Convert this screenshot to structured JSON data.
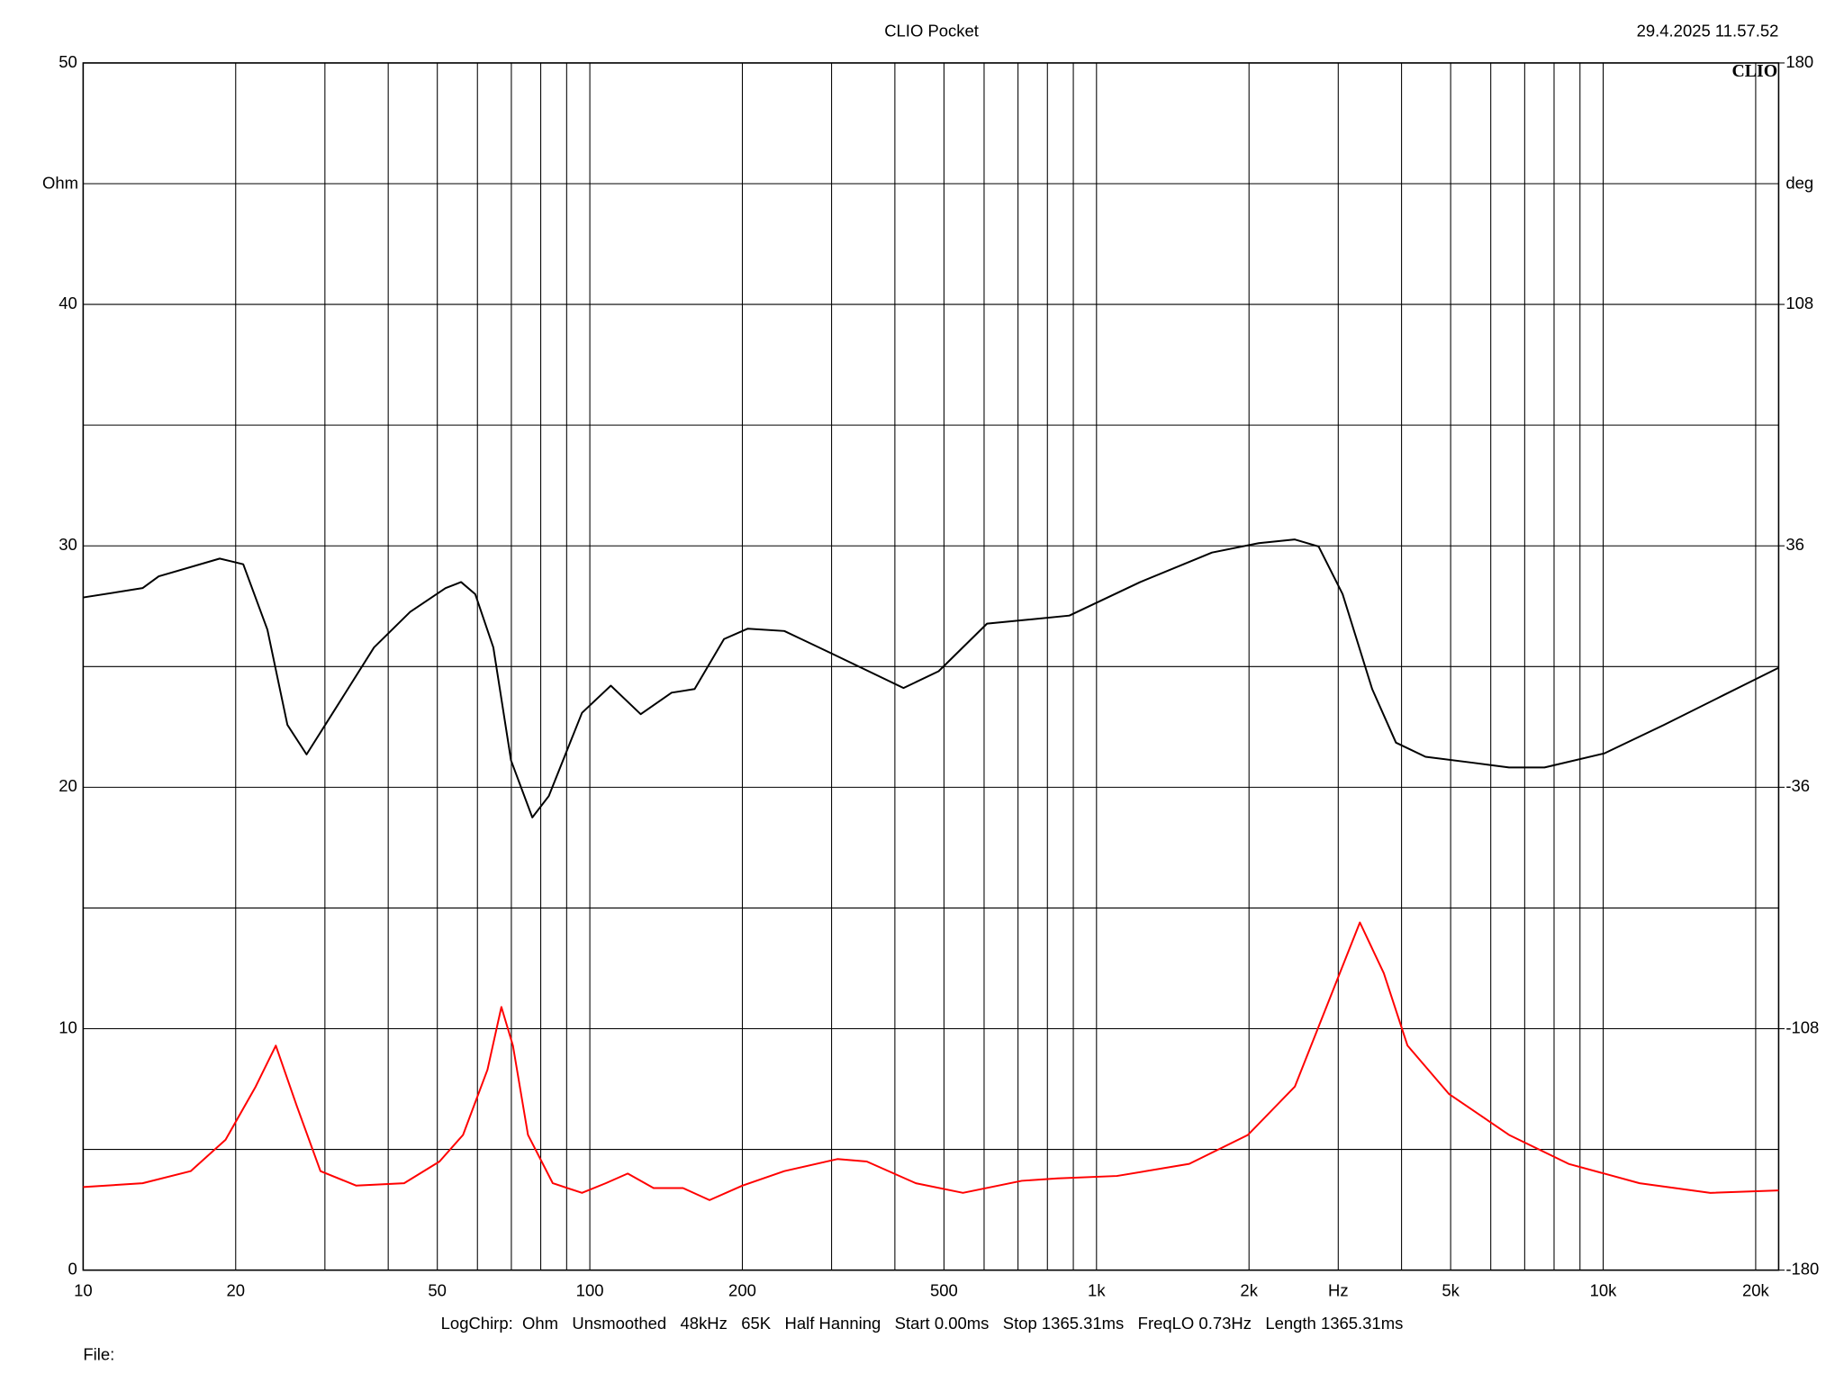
{
  "chart_data": {
    "type": "line",
    "title": "CLIO Pocket",
    "timestamp": "29.4.2025 11.57.52",
    "logo": "CLIO",
    "ylabel": "Ohm",
    "y2label": "deg",
    "xlabel": "Hz",
    "footer": "LogChirp:  Ohm   Unsmoothed   48kHz   65K   Half Hanning   Start 0.00ms   Stop 1365.31ms   FreqLO 0.73Hz   Length 1365.31ms",
    "file_label": "File:",
    "xscale": "log",
    "xlim": [
      10,
      22200
    ],
    "xticks": [
      10,
      20,
      50,
      100,
      200,
      500,
      {
        "value": 1000,
        "label": "1k"
      },
      {
        "value": 2000,
        "label": "2k"
      },
      {
        "value": 5000,
        "label": "5k"
      },
      {
        "value": 10000,
        "label": "10k"
      },
      {
        "value": 20000,
        "label": "20k"
      }
    ],
    "xminor": [
      30,
      40,
      60,
      70,
      80,
      90,
      300,
      400,
      600,
      700,
      800,
      900,
      3000,
      4000,
      6000,
      7000,
      8000,
      9000
    ],
    "xlabel_at": 3000,
    "ylim": [
      0,
      50
    ],
    "yticks": [
      0,
      10,
      20,
      30,
      40,
      50
    ],
    "yminor": [
      5,
      15,
      25,
      35,
      45
    ],
    "y2lim": [
      -180,
      180
    ],
    "y2ticks": [
      -180,
      -108,
      -36,
      36,
      108,
      180
    ],
    "grid": true,
    "series": [
      {
        "color": "#ff0000",
        "axis": "y",
        "x": [
          10,
          13.1,
          16.3,
          19.1,
          21.9,
          24,
          26.4,
          29.4,
          34.6,
          43,
          50.5,
          56.2,
          62.8,
          66.9,
          70.5,
          75.5,
          84.5,
          96.5,
          107.5,
          118.8,
          133.6,
          152.7,
          172.3,
          200,
          242,
          308,
          352,
          440,
          545,
          712,
          838,
          1097,
          1524,
          1990,
          2463,
          2893,
          3310,
          3690,
          4110,
          4960,
          6520,
          8550,
          11800,
          16280,
          22200
        ],
        "values": [
          3.44,
          3.6,
          4.1,
          5.4,
          7.6,
          9.3,
          6.8,
          4.1,
          3.5,
          3.6,
          4.5,
          5.6,
          8.3,
          10.9,
          9.3,
          5.6,
          3.6,
          3.2,
          3.6,
          4.0,
          3.4,
          3.4,
          2.9,
          3.5,
          4.1,
          4.6,
          4.5,
          3.6,
          3.2,
          3.7,
          3.8,
          3.9,
          4.4,
          5.6,
          7.6,
          11.3,
          14.4,
          12.3,
          9.3,
          7.3,
          5.6,
          4.4,
          3.6,
          3.2,
          3.3
        ]
      },
      {
        "color": "#000000",
        "axis": "y2",
        "x": [
          10,
          13.1,
          14.1,
          18.6,
          20.7,
          23.1,
          25.3,
          27.6,
          31.1,
          37.5,
          44.2,
          51.9,
          55.7,
          59.4,
          64.5,
          69.9,
          77,
          83,
          96.5,
          110,
          126,
          145,
          161,
          184,
          205,
          242,
          300,
          416,
          488,
          608,
          712,
          884,
          1220,
          1690,
          2090,
          2463,
          2744,
          3060,
          3500,
          3900,
          4460,
          5540,
          6520,
          7660,
          10050,
          13180,
          17300,
          22200
        ],
        "values": [
          20.6,
          23.4,
          26.9,
          32.2,
          30.5,
          11.0,
          -17.4,
          -26.2,
          -13.8,
          5.7,
          16.3,
          23.4,
          25.2,
          21.6,
          5.7,
          -28.0,
          -45.0,
          -38.6,
          -13.8,
          -5.7,
          -14.2,
          -7.8,
          -6.7,
          8.2,
          11.3,
          10.6,
          3.9,
          -6.4,
          -1.4,
          12.8,
          13.8,
          15.2,
          25.2,
          34.0,
          36.8,
          37.9,
          35.8,
          21.6,
          -6.7,
          -22.7,
          -26.9,
          -28.7,
          -30.1,
          -30.1,
          -25.9,
          -17.4,
          -8.5,
          -0.35
        ]
      }
    ]
  }
}
